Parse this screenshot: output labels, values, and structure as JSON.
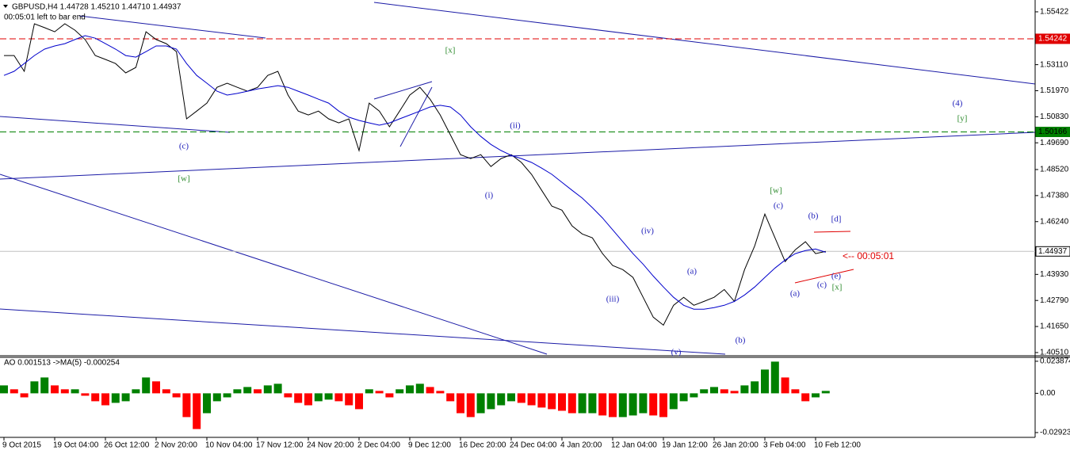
{
  "chart_data": [
    {
      "type": "line",
      "title": "GBPUSD,H4  1.44728 1.45210 1.44710 1.44937",
      "subtitle": "00:05:01 left to bar end",
      "series": [
        {
          "color": "#000000",
          "values": [
            1.5351,
            1.5351,
            1.5282,
            1.549,
            1.5473,
            1.5455,
            1.549,
            1.5462,
            1.5421,
            1.5351,
            1.5334,
            1.5316,
            1.5275,
            1.5299,
            1.5455,
            1.5421,
            1.5403,
            1.5368,
            1.5074,
            1.5108,
            1.5143,
            1.5212,
            1.523,
            1.5212,
            1.5195,
            1.5212,
            1.5264,
            1.5282,
            1.5178,
            1.5108,
            1.5091,
            1.5108,
            1.5074,
            1.5056,
            1.5074,
            1.4935,
            1.5143,
            1.5108,
            1.5039,
            1.5108,
            1.5178,
            1.5212,
            1.516,
            1.5091,
            1.5004,
            1.4917,
            1.49,
            1.4917,
            1.4865,
            1.49,
            1.4917,
            1.4883,
            1.4831,
            1.4761,
            1.4692,
            1.4674,
            1.4605,
            1.457,
            1.4553,
            1.4484,
            1.4432,
            1.4414,
            1.438,
            1.4293,
            1.4206,
            1.4171,
            1.4258,
            1.4293,
            1.4258,
            1.4275,
            1.4293,
            1.4327,
            1.4275,
            1.4414,
            1.4518,
            1.4657,
            1.4553,
            1.4449,
            1.4501,
            1.4536,
            1.4484,
            1.44937
          ]
        },
        {
          "color": "#0000cc",
          "values": [
            1.5264,
            1.5282,
            1.5316,
            1.5351,
            1.5379,
            1.5393,
            1.5403,
            1.5421,
            1.5438,
            1.5427,
            1.5403,
            1.5379,
            1.5351,
            1.5344,
            1.5368,
            1.5393,
            1.5393,
            1.5379,
            1.5316,
            1.5264,
            1.523,
            1.5195,
            1.5178,
            1.5185,
            1.5195,
            1.5205,
            1.5212,
            1.5219,
            1.5212,
            1.5195,
            1.5178,
            1.516,
            1.5143,
            1.5108,
            1.5081,
            1.5067,
            1.5056,
            1.5046,
            1.5056,
            1.5074,
            1.5091,
            1.5108,
            1.5126,
            1.5133,
            1.5126,
            1.5091,
            1.5039,
            1.4997,
            1.4962,
            1.4935,
            1.4914,
            1.49,
            1.4883,
            1.4858,
            1.4831,
            1.4796,
            1.4761,
            1.4727,
            1.4685,
            1.464,
            1.4588,
            1.4536,
            1.4484,
            1.4438,
            1.4386,
            1.4338,
            1.4293,
            1.4258,
            1.4241,
            1.4241,
            1.4248,
            1.4258,
            1.4275,
            1.4303,
            1.4338,
            1.438,
            1.4421,
            1.4456,
            1.4484,
            1.4497,
            1.4504,
            1.449
          ]
        }
      ],
      "ylim": [
        1.4037,
        1.5594
      ],
      "yticks": [
        1.55422,
        {
          "value": 1.5311,
          "label": "1.53110"
        },
        {
          "value": 1.5197,
          "label": "1.51970"
        },
        {
          "value": 1.5083,
          "label": "1.50830"
        },
        {
          "value": 1.4969,
          "label": "1.49690"
        },
        {
          "value": 1.4852,
          "label": "1.48520"
        },
        {
          "value": 1.4738,
          "label": "1.47380"
        },
        {
          "value": 1.4624,
          "label": "1.46240"
        },
        {
          "value": 1.4393,
          "label": "1.43930"
        },
        {
          "value": 1.4279,
          "label": "1.42790"
        },
        {
          "value": 1.4165,
          "label": "1.41650"
        },
        {
          "value": 1.4051,
          "label": "1.40510"
        }
      ],
      "hlines": [
        {
          "value": 1.54242,
          "color": "#e00000",
          "dashed": true
        },
        {
          "value": 1.50166,
          "color": "#008000",
          "dashed": true
        },
        {
          "value": 1.44937,
          "color": "#c0c0c0",
          "dashed": false
        }
      ],
      "countdown": "<-- 00:05:01",
      "annotations": [
        {
          "text": "[x]",
          "color": "#2e8b2e"
        },
        {
          "text": "(c)",
          "color": "#2222bb"
        },
        {
          "text": "[w]",
          "color": "#2e8b2e"
        },
        {
          "text": "(ii)",
          "color": "#2222bb"
        },
        {
          "text": "(i)",
          "color": "#2222bb"
        },
        {
          "text": "(iv)",
          "color": "#2222bb"
        },
        {
          "text": "(iii)",
          "color": "#2222bb"
        },
        {
          "text": "(v)",
          "color": "#2222bb"
        },
        {
          "text": "(a)",
          "color": "#2222bb"
        },
        {
          "text": "(b)",
          "color": "#2222bb"
        },
        {
          "text": "[w]",
          "color": "#2e8b2e"
        },
        {
          "text": "(c)",
          "color": "#2222bb"
        },
        {
          "text": "(b)",
          "color": "#2222bb"
        },
        {
          "text": "[d]",
          "color": "#2222bb"
        },
        {
          "text": "(a)",
          "color": "#2222bb"
        },
        {
          "text": "(c)",
          "color": "#2222bb"
        },
        {
          "text": "(e)",
          "color": "#2222bb"
        },
        {
          "text": "[x]",
          "color": "#2e8b2e"
        },
        {
          "text": "(4)",
          "color": "#2222bb"
        },
        {
          "text": "[y]",
          "color": "#2e8b2e"
        }
      ]
    },
    {
      "type": "bar",
      "title": "AO 0.001513  ->MA(5) -0.000254",
      "categories": [
        "9 Oct 2015",
        null,
        null,
        null,
        null,
        "19 Oct 04:00",
        null,
        null,
        null,
        null,
        "26 Oct 12:00",
        null,
        null,
        null,
        null,
        "2 Nov 20:00",
        null,
        null,
        null,
        null,
        "10 Nov 04:00",
        null,
        null,
        null,
        null,
        "17 Nov 12:00",
        null,
        null,
        null,
        null,
        "24 Nov 20:00",
        null,
        null,
        null,
        null,
        "2 Dec 04:00",
        null,
        null,
        null,
        null,
        "9 Dec 12:00",
        null,
        null,
        null,
        null,
        "16 Dec 20:00",
        null,
        null,
        null,
        null,
        "24 Dec 04:00",
        null,
        null,
        null,
        null,
        "4 Jan 20:00",
        null,
        null,
        null,
        null,
        "12 Jan 04:00",
        null,
        null,
        null,
        null,
        "19 Jan 12:00",
        null,
        null,
        null,
        null,
        "26 Jan 20:00",
        null,
        null,
        null,
        null,
        "3 Feb 04:00",
        null,
        null,
        null,
        null,
        "10 Feb 12:00",
        null
      ],
      "values": [
        0.0059,
        0.003,
        -0.003,
        0.0089,
        0.0118,
        0.0059,
        0.003,
        0.003,
        -0.0018,
        -0.0059,
        -0.0089,
        -0.0071,
        -0.0059,
        0.003,
        0.0118,
        0.0089,
        0.003,
        -0.003,
        -0.0177,
        -0.0266,
        -0.0148,
        -0.0059,
        -0.003,
        0.003,
        0.0047,
        0.003,
        0.0059,
        0.0071,
        -0.003,
        -0.0071,
        -0.0089,
        -0.0059,
        -0.0047,
        -0.0059,
        -0.0089,
        -0.0118,
        0.003,
        0.0018,
        -0.003,
        0.003,
        0.0059,
        0.0071,
        0.0047,
        0.0018,
        -0.0059,
        -0.0148,
        -0.0177,
        -0.0148,
        -0.0118,
        -0.0089,
        -0.0059,
        -0.0071,
        -0.0089,
        -0.0106,
        -0.0118,
        -0.013,
        -0.0148,
        -0.0148,
        -0.0148,
        -0.0165,
        -0.0177,
        -0.0177,
        -0.0165,
        -0.0148,
        -0.0165,
        -0.0177,
        -0.0118,
        -0.0059,
        -0.003,
        0.003,
        0.0047,
        0.003,
        0.0018,
        0.0059,
        0.0089,
        0.0177,
        0.0236,
        0.0118,
        0.003,
        -0.0059,
        -0.003,
        0.0018
      ],
      "colors": {
        "up": "#008000",
        "down": "#ff0000"
      },
      "ylim": [
        -0.0328,
        0.0262
      ],
      "yticks": [
        0.023874,
        {
          "value": 0,
          "label": "0.00"
        },
        -0.02923
      ]
    }
  ]
}
